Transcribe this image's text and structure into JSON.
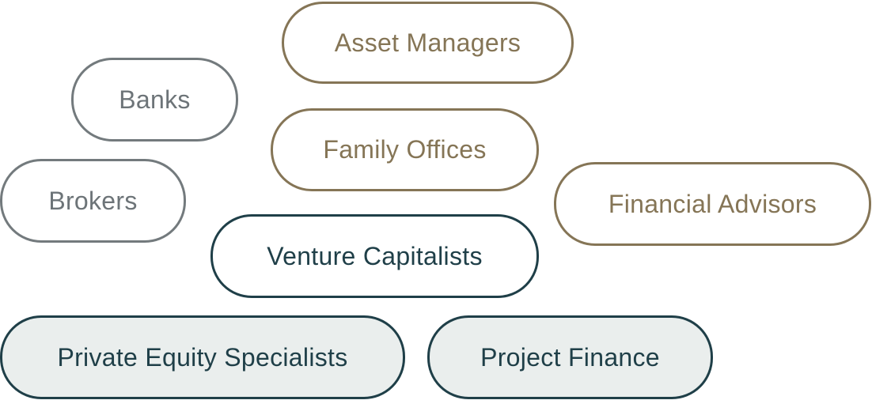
{
  "tags": {
    "asset_managers": "Asset Managers",
    "banks": "Banks",
    "family_offices": "Family Offices",
    "brokers": "Brokers",
    "financial_advisors": "Financial Advisors",
    "venture_capitalists": "Venture Capitalists",
    "private_equity_specialists": "Private Equity Specialists",
    "project_finance": "Project Finance"
  },
  "colors": {
    "grey": "#737a7d",
    "gold": "#857556",
    "teal": "#1f3f48",
    "teal_fill": "#eaeeed"
  }
}
